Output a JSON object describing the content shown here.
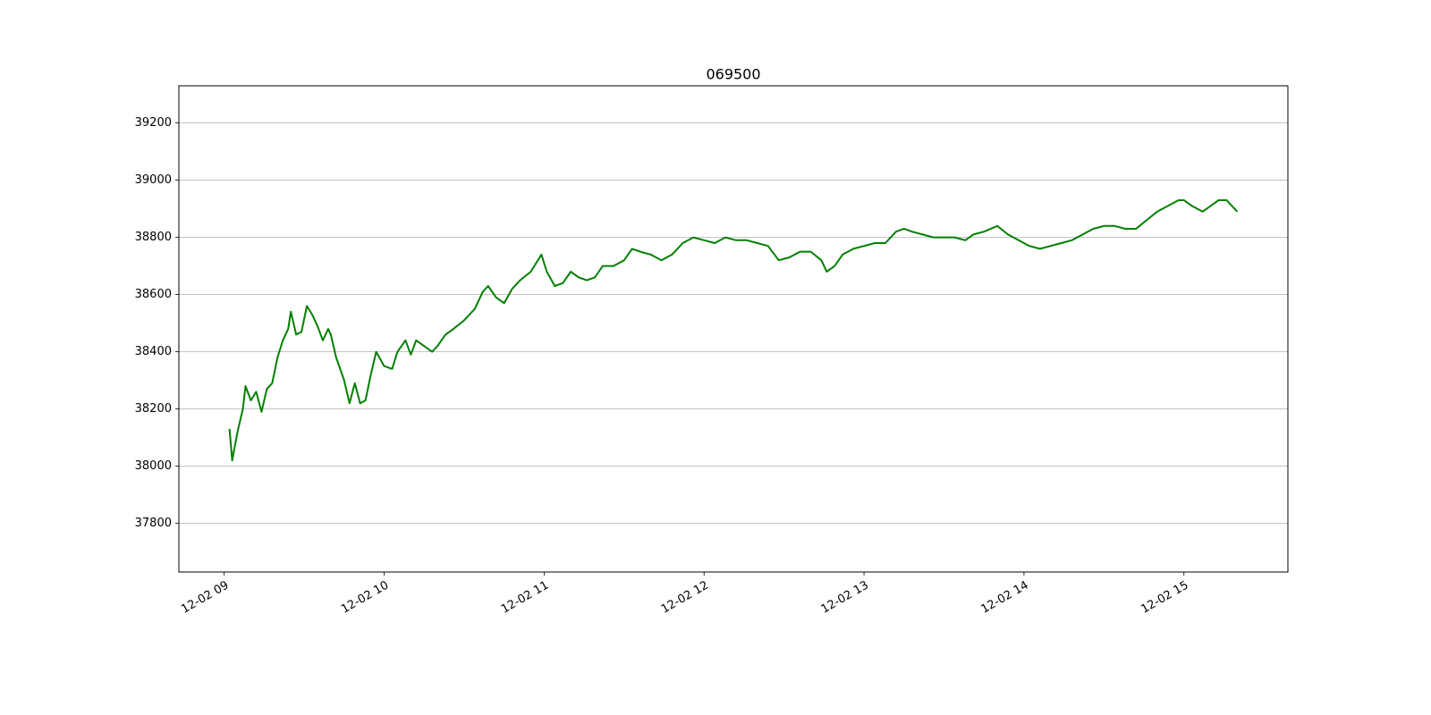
{
  "chart_data": {
    "type": "line",
    "title": "069500",
    "x": [
      "12-02 09:02",
      "12-02 09:03",
      "12-02 09:05",
      "12-02 09:07",
      "12-02 09:08",
      "12-02 09:10",
      "12-02 09:12",
      "12-02 09:14",
      "12-02 09:16",
      "12-02 09:18",
      "12-02 09:20",
      "12-02 09:22",
      "12-02 09:24",
      "12-02 09:25",
      "12-02 09:27",
      "12-02 09:29",
      "12-02 09:31",
      "12-02 09:33",
      "12-02 09:35",
      "12-02 09:37",
      "12-02 09:39",
      "12-02 09:40",
      "12-02 09:42",
      "12-02 09:45",
      "12-02 09:47",
      "12-02 09:49",
      "12-02 09:51",
      "12-02 09:53",
      "12-02 09:55",
      "12-02 09:57",
      "12-02 10:00",
      "12-02 10:03",
      "12-02 10:05",
      "12-02 10:08",
      "12-02 10:10",
      "12-02 10:12",
      "12-02 10:15",
      "12-02 10:18",
      "12-02 10:20",
      "12-02 10:23",
      "12-02 10:26",
      "12-02 10:30",
      "12-02 10:34",
      "12-02 10:37",
      "12-02 10:39",
      "12-02 10:42",
      "12-02 10:45",
      "12-02 10:48",
      "12-02 10:51",
      "12-02 10:55",
      "12-02 10:59",
      "12-02 11:01",
      "12-02 11:04",
      "12-02 11:07",
      "12-02 11:10",
      "12-02 11:13",
      "12-02 11:16",
      "12-02 11:19",
      "12-02 11:22",
      "12-02 11:26",
      "12-02 11:30",
      "12-02 11:33",
      "12-02 11:36",
      "12-02 11:40",
      "12-02 11:44",
      "12-02 11:48",
      "12-02 11:52",
      "12-02 11:56",
      "12-02 12:00",
      "12-02 12:04",
      "12-02 12:08",
      "12-02 12:12",
      "12-02 12:16",
      "12-02 12:20",
      "12-02 12:24",
      "12-02 12:28",
      "12-02 12:32",
      "12-02 12:36",
      "12-02 12:40",
      "12-02 12:44",
      "12-02 12:46",
      "12-02 12:49",
      "12-02 12:52",
      "12-02 12:56",
      "12-02 13:00",
      "12-02 13:04",
      "12-02 13:08",
      "12-02 13:12",
      "12-02 13:15",
      "12-02 13:18",
      "12-02 13:22",
      "12-02 13:26",
      "12-02 13:30",
      "12-02 13:34",
      "12-02 13:38",
      "12-02 13:41",
      "12-02 13:45",
      "12-02 13:50",
      "12-02 13:54",
      "12-02 13:58",
      "12-02 14:02",
      "12-02 14:06",
      "12-02 14:10",
      "12-02 14:14",
      "12-02 14:18",
      "12-02 14:22",
      "12-02 14:26",
      "12-02 14:30",
      "12-02 14:34",
      "12-02 14:38",
      "12-02 14:42",
      "12-02 14:46",
      "12-02 14:50",
      "12-02 14:54",
      "12-02 14:58",
      "12-02 15:00",
      "12-02 15:03",
      "12-02 15:07",
      "12-02 15:10",
      "12-02 15:13",
      "12-02 15:16",
      "12-02 15:19",
      "12-02 15:20"
    ],
    "values": [
      38130,
      38020,
      38120,
      38200,
      38280,
      38230,
      38260,
      38190,
      38270,
      38290,
      38380,
      38440,
      38480,
      38540,
      38460,
      38470,
      38560,
      38530,
      38490,
      38440,
      38480,
      38460,
      38380,
      38300,
      38220,
      38290,
      38220,
      38230,
      38320,
      38400,
      38350,
      38340,
      38400,
      38440,
      38390,
      38440,
      38420,
      38400,
      38420,
      38460,
      38480,
      38510,
      38550,
      38610,
      38630,
      38590,
      38570,
      38620,
      38650,
      38680,
      38740,
      38680,
      38630,
      38640,
      38680,
      38660,
      38650,
      38660,
      38700,
      38700,
      38720,
      38760,
      38750,
      38740,
      38720,
      38740,
      38780,
      38800,
      38790,
      38780,
      38800,
      38790,
      38790,
      38780,
      38770,
      38720,
      38730,
      38750,
      38750,
      38720,
      38680,
      38700,
      38740,
      38760,
      38770,
      38780,
      38780,
      38820,
      38830,
      38820,
      38810,
      38800,
      38800,
      38800,
      38790,
      38810,
      38820,
      38840,
      38810,
      38790,
      38770,
      38760,
      38770,
      38780,
      38790,
      38810,
      38830,
      38840,
      38840,
      38830,
      38830,
      38860,
      38890,
      38910,
      38930,
      38930,
      38910,
      38890,
      38910,
      38930,
      38930,
      38900,
      38890
    ],
    "color": "#008000",
    "xlim": [
      "12-02 08:43",
      "12-02 15:39"
    ],
    "xticks": [
      {
        "value": "12-02 09:00",
        "label": "12-02 09"
      },
      {
        "value": "12-02 10:00",
        "label": "12-02 10"
      },
      {
        "value": "12-02 11:00",
        "label": "12-02 11"
      },
      {
        "value": "12-02 12:00",
        "label": "12-02 12"
      },
      {
        "value": "12-02 13:00",
        "label": "12-02 13"
      },
      {
        "value": "12-02 14:00",
        "label": "12-02 14"
      },
      {
        "value": "12-02 15:00",
        "label": "12-02 15"
      }
    ],
    "ylim": [
      37630,
      39330
    ],
    "yticks": [
      37800,
      38000,
      38200,
      38400,
      38600,
      38800,
      39000,
      39200
    ],
    "grid": "y"
  }
}
